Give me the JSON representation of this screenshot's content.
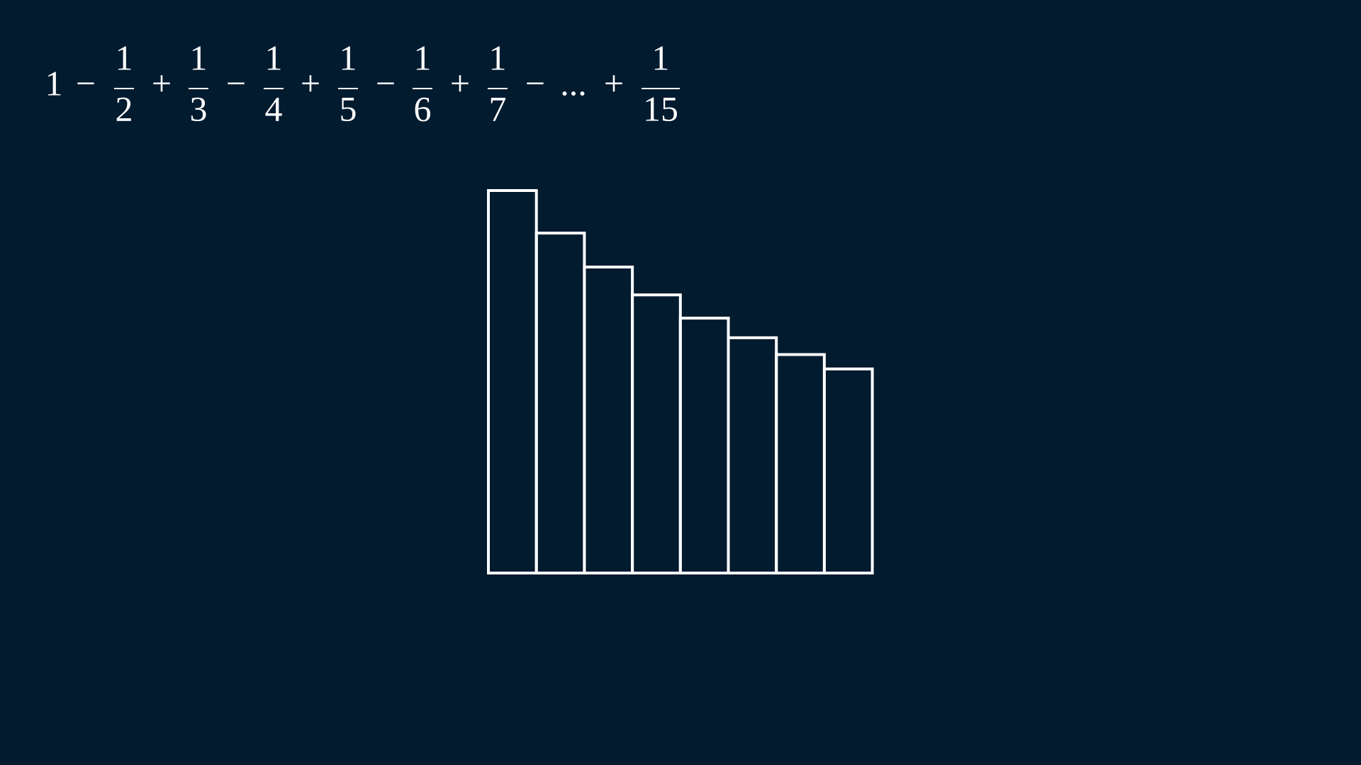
{
  "formula": [
    "1",
    "−",
    {
      "num": "1",
      "den": "2"
    },
    "+",
    {
      "num": "1",
      "den": "3"
    },
    "−",
    {
      "num": "1",
      "den": "4"
    },
    "+",
    {
      "num": "1",
      "den": "5"
    },
    "−",
    {
      "num": "1",
      "den": "6"
    },
    "+",
    {
      "num": "1",
      "den": "7"
    },
    "−",
    "...",
    "+",
    {
      "num": "1",
      "den": "15"
    }
  ],
  "chart_data": {
    "type": "bar",
    "values": [
      0.125,
      0.1111,
      0.1,
      0.0909,
      0.0833,
      0.0769,
      0.0714,
      0.0667
    ],
    "ylim": [
      0,
      0.125
    ],
    "color": "#ffffff"
  }
}
